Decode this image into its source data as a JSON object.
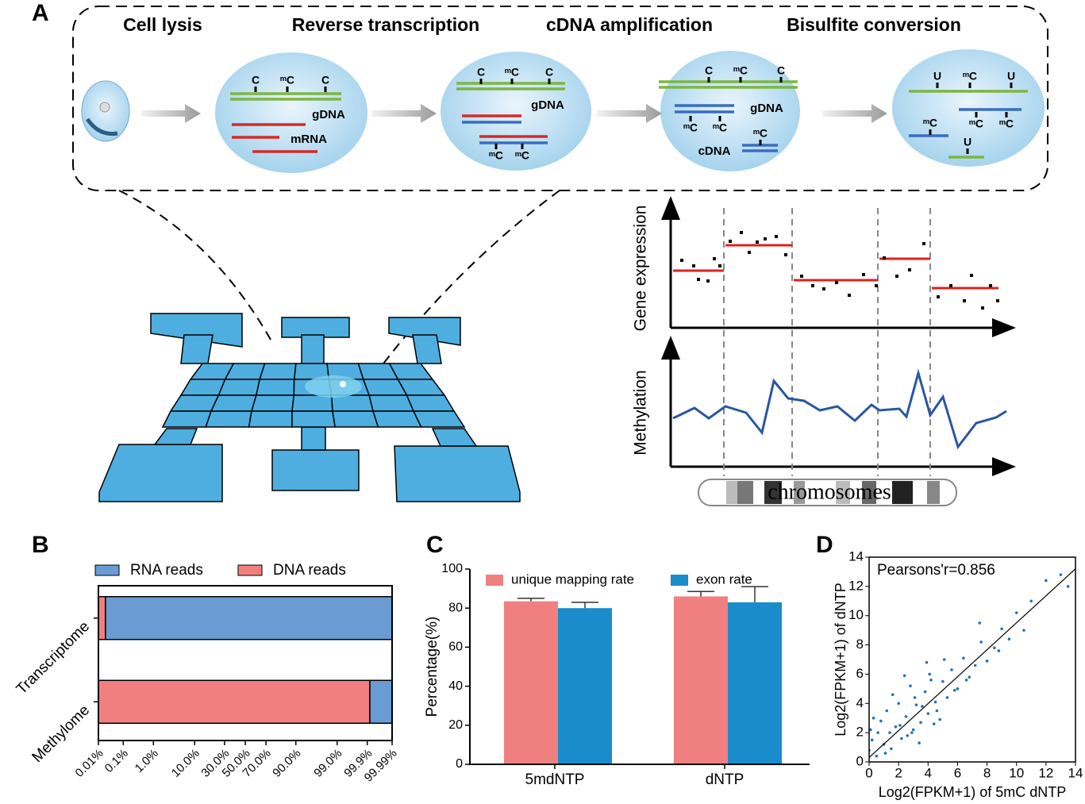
{
  "panel_a": {
    "label": "A",
    "steps": [
      "Cell lysis",
      "Reverse transcription",
      "cDNA amplification",
      "Bisulfite conversion"
    ],
    "cells": [
      {
        "sites": [
          "C",
          "ᵐC",
          "C"
        ],
        "labels": [
          "gDNA",
          "mRNA"
        ]
      },
      {
        "sites": [
          "C",
          "ᵐC",
          "C",
          "ᵐC",
          "ᵐC"
        ],
        "labels": [
          "gDNA"
        ]
      },
      {
        "sites": [
          "C",
          "ᵐC",
          "C",
          "ᵐC",
          "ᵐC",
          "ᵐC"
        ],
        "labels": [
          "gDNA",
          "cDNA"
        ]
      },
      {
        "sites": [
          "U",
          "ᵐC",
          "U",
          "ᵐC",
          "ᵐC",
          "ᵐC",
          "U"
        ]
      }
    ],
    "plot_labels": {
      "gene_expression": "Gene expression",
      "methylation": "Methylation",
      "chromosomes": "chromosomes"
    }
  },
  "chart_data": [
    {
      "type": "stacked_hbar",
      "label": "B",
      "xscale": "probit",
      "categories": [
        "Transcriptome",
        "Methylome"
      ],
      "series": [
        {
          "name": "RNA reads",
          "color": "#6a9bd2",
          "values": [
            99.98,
            0.08
          ]
        },
        {
          "name": "DNA reads",
          "color": "#f17f7f",
          "values": [
            0.02,
            99.92
          ]
        }
      ],
      "xlim": [
        0.01,
        99.99
      ],
      "xticks": [
        {
          "value": 0.01,
          "label": "0.01%"
        },
        {
          "value": 0.1,
          "label": "0.1%"
        },
        {
          "value": 1,
          "label": "1.0%"
        },
        {
          "value": 10,
          "label": "10.0%"
        },
        {
          "value": 30,
          "label": "30.0%"
        },
        {
          "value": 50,
          "label": "50.0%"
        },
        {
          "value": 70,
          "label": "70.0%"
        },
        {
          "value": 90,
          "label": "90.0%"
        },
        {
          "value": 99,
          "label": "99.0%"
        },
        {
          "value": 99.9,
          "label": "99.9%"
        },
        {
          "value": 99.99,
          "label": "99.99%"
        }
      ]
    },
    {
      "type": "bar",
      "label": "C",
      "ylabel": "Percentage(%)",
      "categories": [
        "5mdNTP",
        "dNTP"
      ],
      "series": [
        {
          "name": "unique mapping rate",
          "color": "#f08080",
          "values": [
            83.5,
            86
          ],
          "errors": [
            1.5,
            2.5
          ]
        },
        {
          "name": "exon rate",
          "color": "#1b8ccb",
          "values": [
            80,
            83
          ],
          "errors": [
            3,
            8
          ]
        }
      ],
      "ylim": [
        0,
        100
      ],
      "yticks": [
        0,
        20,
        40,
        60,
        80,
        100
      ]
    },
    {
      "type": "scatter",
      "label": "D",
      "annotation": "Pearsons'r=0.856",
      "xlabel": "Log2(FPKM+1) of 5mC dNTP",
      "ylabel": "Log2(FPKM+1) of dNTP",
      "color": "#2272b8",
      "x": [
        0.2,
        0.5,
        0.8,
        1.0,
        1.2,
        1.5,
        1.8,
        2.0,
        2.2,
        2.5,
        2.8,
        3.0,
        3.2,
        3.5,
        3.8,
        4.0,
        4.2,
        4.5,
        4.8,
        5.0,
        5.3,
        5.6,
        6.0,
        6.4,
        6.8,
        7.2,
        7.6,
        8.0,
        8.5,
        9.0,
        9.5,
        10.0,
        10.5,
        11.0,
        12.0,
        13.0,
        13.5,
        0.3,
        0.6,
        1.1,
        1.6,
        2.1,
        2.6,
        3.1,
        3.6,
        4.1,
        4.6,
        5.1,
        5.8,
        6.6,
        7.5,
        8.8,
        1.4,
        2.4,
        3.4,
        0.1,
        0.0,
        4.4,
        3.9,
        2.9
      ],
      "y": [
        1.5,
        0.4,
        2.8,
        1.2,
        3.5,
        0.9,
        2.4,
        4.0,
        1.6,
        3.1,
        5.2,
        2.2,
        3.9,
        2.7,
        4.8,
        3.3,
        5.6,
        4.1,
        2.9,
        5.5,
        4.4,
        6.3,
        5.0,
        7.1,
        5.8,
        6.6,
        8.2,
        6.9,
        7.8,
        9.1,
        8.4,
        10.2,
        9.0,
        11.0,
        12.4,
        12.8,
        12.0,
        3.0,
        2.0,
        0.6,
        4.6,
        2.5,
        1.8,
        4.4,
        3.8,
        6.0,
        3.5,
        7.0,
        4.9,
        5.6,
        9.5,
        7.6,
        2.0,
        5.9,
        1.3,
        2.2,
        0.8,
        2.6,
        6.8,
        2.0
      ],
      "fit": {
        "x": [
          0,
          14
        ],
        "y": [
          0.3,
          13.2
        ]
      },
      "xlim": [
        0,
        14
      ],
      "ylim": [
        0,
        14
      ],
      "xticks": [
        0,
        2,
        4,
        6,
        8,
        10,
        12,
        14
      ],
      "yticks": [
        0,
        2,
        4,
        6,
        8,
        10,
        12,
        14
      ]
    }
  ]
}
